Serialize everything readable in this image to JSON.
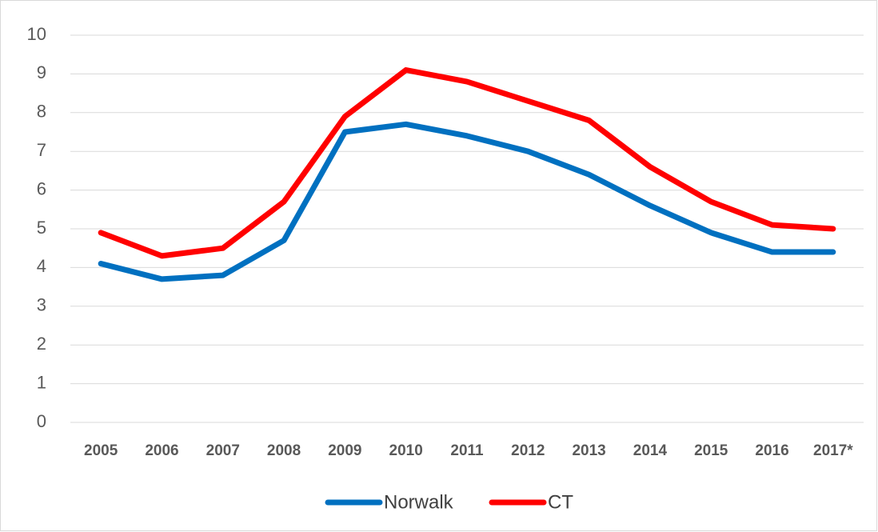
{
  "chart_data": {
    "type": "line",
    "categories": [
      "2005",
      "2006",
      "2007",
      "2008",
      "2009",
      "2010",
      "2011",
      "2012",
      "2013",
      "2014",
      "2015",
      "2016",
      "2017*"
    ],
    "series": [
      {
        "name": "Norwalk",
        "color": "#0070c0",
        "values": [
          4.1,
          3.7,
          3.8,
          4.7,
          7.5,
          7.7,
          7.4,
          7.0,
          6.4,
          5.6,
          4.9,
          4.4,
          4.4
        ]
      },
      {
        "name": "CT",
        "color": "#ff0000",
        "values": [
          4.9,
          4.3,
          4.5,
          5.7,
          7.9,
          9.1,
          8.8,
          8.3,
          7.8,
          6.6,
          5.7,
          5.1,
          5.0
        ]
      }
    ],
    "ylim": [
      0,
      10
    ],
    "yticks": [
      0,
      1,
      2,
      3,
      4,
      5,
      6,
      7,
      8,
      9,
      10
    ],
    "grid": true,
    "legend": "bottom"
  }
}
